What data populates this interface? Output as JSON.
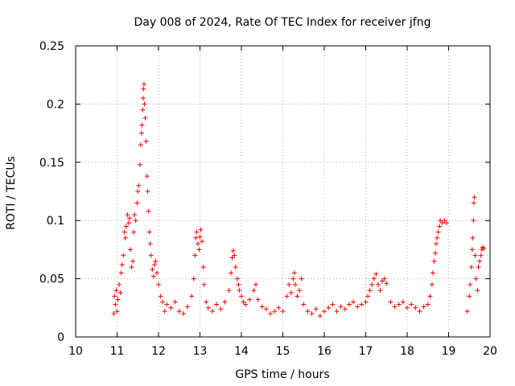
{
  "chart_data": {
    "type": "scatter",
    "title": "Day 008 of 2024, Rate Of TEC Index for receiver jfng",
    "xlabel": "GPS time / hours",
    "ylabel": "ROTI / TECUs",
    "xlim": [
      10,
      20
    ],
    "ylim": [
      0,
      0.25
    ],
    "x_ticks": [
      10,
      11,
      12,
      13,
      14,
      15,
      16,
      17,
      18,
      19,
      20
    ],
    "y_ticks": [
      0,
      0.05,
      0.1,
      0.15,
      0.2,
      0.25
    ],
    "y_tick_labels": [
      "0",
      "0.05",
      "0.1",
      "0.15",
      "0.2",
      "0.25"
    ],
    "grid": true,
    "legend": "none",
    "marker": "+",
    "series": [
      {
        "name": "ROTI",
        "color": "#ff0000",
        "points": [
          [
            10.92,
            0.02
          ],
          [
            10.94,
            0.035
          ],
          [
            10.96,
            0.028
          ],
          [
            10.98,
            0.04
          ],
          [
            11.0,
            0.022
          ],
          [
            11.02,
            0.032
          ],
          [
            11.05,
            0.045
          ],
          [
            11.08,
            0.038
          ],
          [
            11.1,
            0.055
          ],
          [
            11.12,
            0.062
          ],
          [
            11.15,
            0.07
          ],
          [
            11.18,
            0.09
          ],
          [
            11.2,
            0.085
          ],
          [
            11.22,
            0.095
          ],
          [
            11.25,
            0.105
          ],
          [
            11.28,
            0.098
          ],
          [
            11.3,
            0.102
          ],
          [
            11.32,
            0.075
          ],
          [
            11.35,
            0.06
          ],
          [
            11.38,
            0.065
          ],
          [
            11.4,
            0.09
          ],
          [
            11.42,
            0.105
          ],
          [
            11.45,
            0.1
          ],
          [
            11.48,
            0.115
          ],
          [
            11.5,
            0.125
          ],
          [
            11.52,
            0.13
          ],
          [
            11.55,
            0.148
          ],
          [
            11.57,
            0.165
          ],
          [
            11.59,
            0.175
          ],
          [
            11.6,
            0.182
          ],
          [
            11.62,
            0.195
          ],
          [
            11.63,
            0.205
          ],
          [
            11.64,
            0.213
          ],
          [
            11.65,
            0.217
          ],
          [
            11.66,
            0.2
          ],
          [
            11.68,
            0.188
          ],
          [
            11.7,
            0.168
          ],
          [
            11.72,
            0.138
          ],
          [
            11.74,
            0.125
          ],
          [
            11.76,
            0.108
          ],
          [
            11.78,
            0.09
          ],
          [
            11.8,
            0.08
          ],
          [
            11.82,
            0.07
          ],
          [
            11.85,
            0.058
          ],
          [
            11.88,
            0.052
          ],
          [
            11.9,
            0.062
          ],
          [
            11.93,
            0.065
          ],
          [
            11.96,
            0.055
          ],
          [
            12.0,
            0.045
          ],
          [
            12.05,
            0.035
          ],
          [
            12.1,
            0.03
          ],
          [
            12.15,
            0.022
          ],
          [
            12.2,
            0.028
          ],
          [
            12.3,
            0.025
          ],
          [
            12.4,
            0.03
          ],
          [
            12.5,
            0.022
          ],
          [
            12.6,
            0.02
          ],
          [
            12.7,
            0.026
          ],
          [
            12.8,
            0.035
          ],
          [
            12.85,
            0.05
          ],
          [
            12.88,
            0.07
          ],
          [
            12.9,
            0.085
          ],
          [
            12.92,
            0.09
          ],
          [
            12.95,
            0.08
          ],
          [
            12.98,
            0.075
          ],
          [
            13.0,
            0.086
          ],
          [
            13.02,
            0.092
          ],
          [
            13.05,
            0.082
          ],
          [
            13.08,
            0.06
          ],
          [
            13.1,
            0.045
          ],
          [
            13.15,
            0.03
          ],
          [
            13.2,
            0.025
          ],
          [
            13.3,
            0.022
          ],
          [
            13.4,
            0.028
          ],
          [
            13.5,
            0.024
          ],
          [
            13.6,
            0.03
          ],
          [
            13.7,
            0.04
          ],
          [
            13.75,
            0.055
          ],
          [
            13.78,
            0.068
          ],
          [
            13.8,
            0.074
          ],
          [
            13.83,
            0.07
          ],
          [
            13.86,
            0.06
          ],
          [
            13.9,
            0.05
          ],
          [
            13.93,
            0.045
          ],
          [
            13.95,
            0.04
          ],
          [
            14.0,
            0.035
          ],
          [
            14.05,
            0.03
          ],
          [
            14.1,
            0.028
          ],
          [
            14.2,
            0.032
          ],
          [
            14.3,
            0.04
          ],
          [
            14.35,
            0.045
          ],
          [
            14.4,
            0.032
          ],
          [
            14.5,
            0.026
          ],
          [
            14.6,
            0.024
          ],
          [
            14.7,
            0.02
          ],
          [
            14.8,
            0.022
          ],
          [
            14.9,
            0.025
          ],
          [
            15.0,
            0.022
          ],
          [
            15.1,
            0.035
          ],
          [
            15.15,
            0.045
          ],
          [
            15.2,
            0.038
          ],
          [
            15.25,
            0.05
          ],
          [
            15.28,
            0.055
          ],
          [
            15.3,
            0.045
          ],
          [
            15.35,
            0.035
          ],
          [
            15.4,
            0.04
          ],
          [
            15.45,
            0.05
          ],
          [
            15.5,
            0.028
          ],
          [
            15.6,
            0.022
          ],
          [
            15.7,
            0.02
          ],
          [
            15.8,
            0.024
          ],
          [
            15.9,
            0.018
          ],
          [
            16.0,
            0.022
          ],
          [
            16.1,
            0.025
          ],
          [
            16.2,
            0.028
          ],
          [
            16.3,
            0.022
          ],
          [
            16.4,
            0.026
          ],
          [
            16.5,
            0.024
          ],
          [
            16.6,
            0.028
          ],
          [
            16.7,
            0.03
          ],
          [
            16.8,
            0.026
          ],
          [
            16.9,
            0.028
          ],
          [
            17.0,
            0.03
          ],
          [
            17.05,
            0.035
          ],
          [
            17.1,
            0.04
          ],
          [
            17.15,
            0.045
          ],
          [
            17.2,
            0.05
          ],
          [
            17.25,
            0.054
          ],
          [
            17.3,
            0.045
          ],
          [
            17.35,
            0.04
          ],
          [
            17.4,
            0.048
          ],
          [
            17.45,
            0.05
          ],
          [
            17.5,
            0.046
          ],
          [
            17.6,
            0.03
          ],
          [
            17.7,
            0.026
          ],
          [
            17.8,
            0.028
          ],
          [
            17.9,
            0.03
          ],
          [
            18.0,
            0.025
          ],
          [
            18.1,
            0.028
          ],
          [
            18.2,
            0.025
          ],
          [
            18.3,
            0.022
          ],
          [
            18.4,
            0.026
          ],
          [
            18.5,
            0.028
          ],
          [
            18.55,
            0.035
          ],
          [
            18.6,
            0.045
          ],
          [
            18.62,
            0.055
          ],
          [
            18.65,
            0.065
          ],
          [
            18.68,
            0.072
          ],
          [
            18.7,
            0.08
          ],
          [
            18.72,
            0.085
          ],
          [
            18.75,
            0.09
          ],
          [
            18.78,
            0.095
          ],
          [
            18.8,
            0.1
          ],
          [
            18.85,
            0.098
          ],
          [
            18.9,
            0.1
          ],
          [
            18.95,
            0.098
          ],
          [
            19.45,
            0.022
          ],
          [
            19.5,
            0.035
          ],
          [
            19.52,
            0.045
          ],
          [
            19.55,
            0.06
          ],
          [
            19.57,
            0.075
          ],
          [
            19.58,
            0.085
          ],
          [
            19.6,
            0.1
          ],
          [
            19.61,
            0.115
          ],
          [
            19.62,
            0.12
          ],
          [
            19.64,
            0.07
          ],
          [
            19.66,
            0.05
          ],
          [
            19.7,
            0.04
          ],
          [
            19.72,
            0.06
          ],
          [
            19.75,
            0.065
          ],
          [
            19.78,
            0.07
          ],
          [
            19.8,
            0.075
          ],
          [
            19.82,
            0.077
          ],
          [
            19.85,
            0.076
          ]
        ]
      }
    ]
  }
}
